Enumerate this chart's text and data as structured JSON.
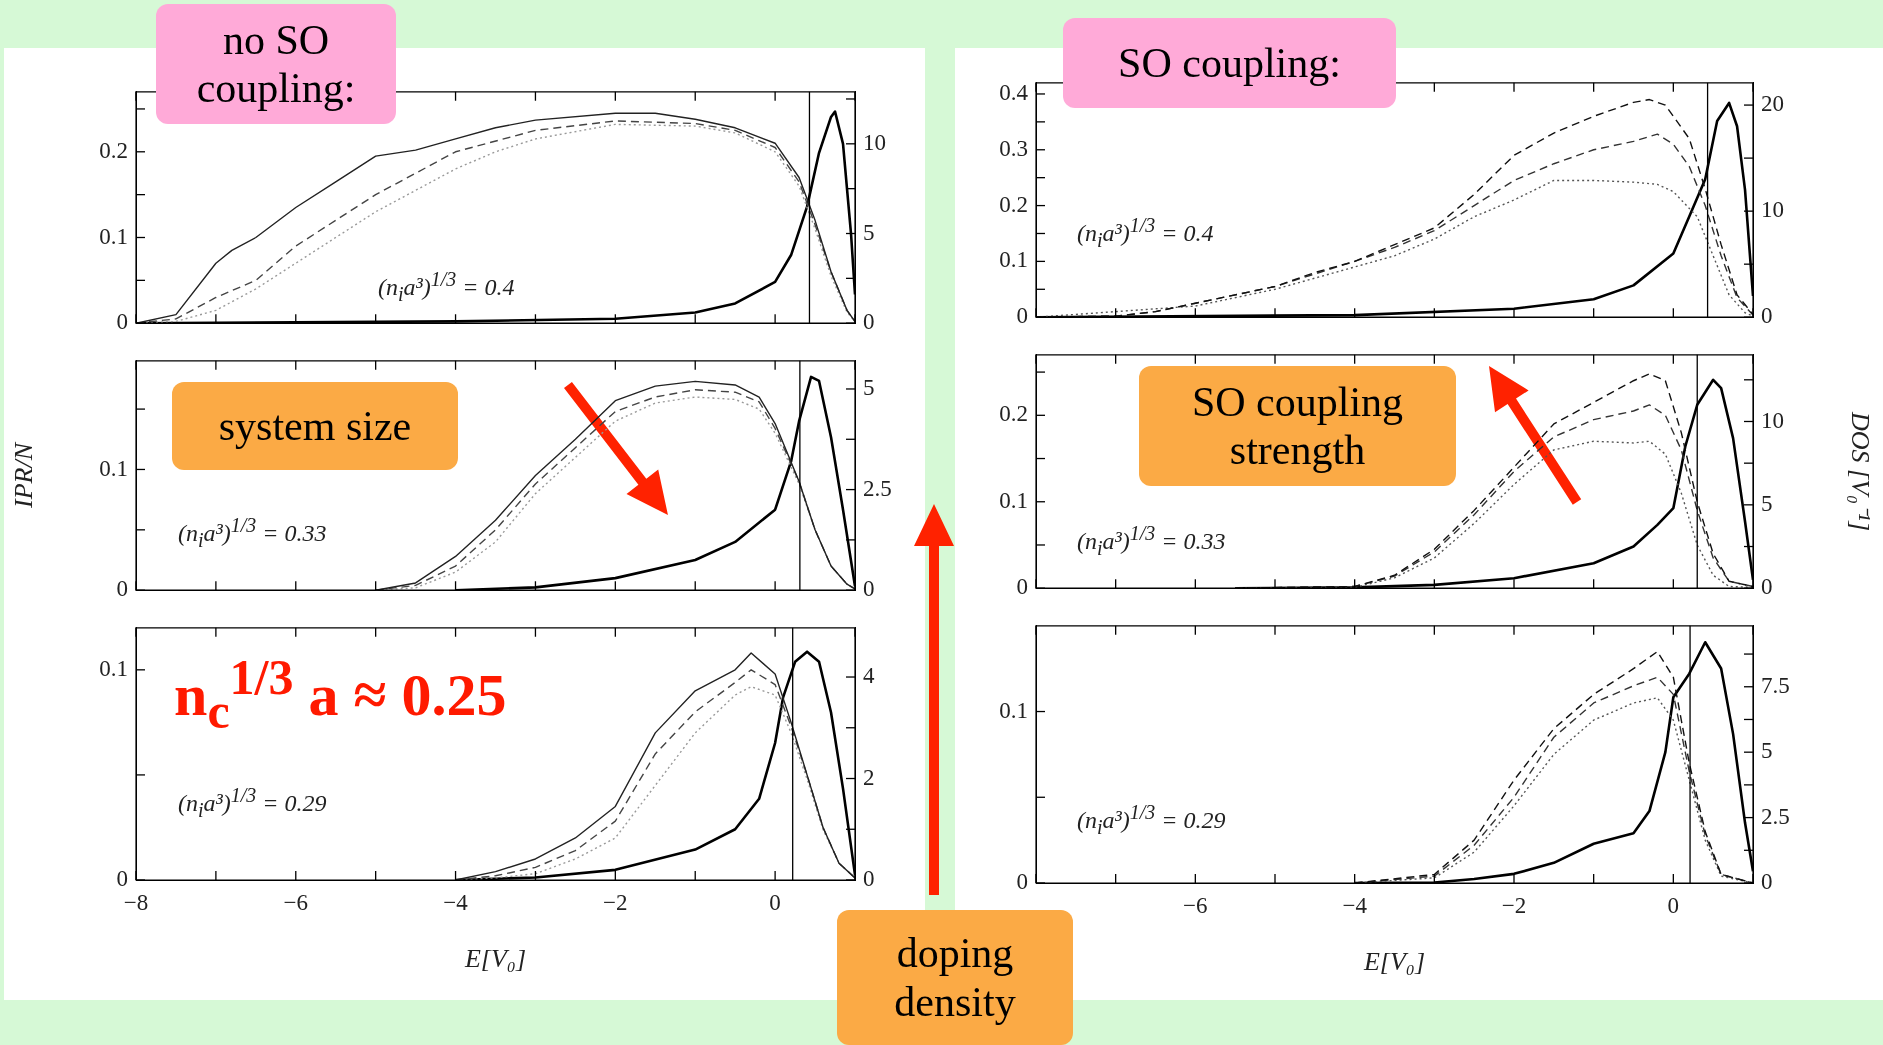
{
  "chart_data": [
    {
      "type": "line",
      "marker": "none",
      "tick_labels": "y",
      "xlim": [
        -8,
        1
      ],
      "xticks": [
        {
          "value": -8,
          "label": null
        },
        {
          "value": -7,
          "label": null
        },
        {
          "value": -6,
          "label": null
        },
        {
          "value": -5,
          "label": null
        },
        {
          "value": -4,
          "label": null
        },
        {
          "value": -3,
          "label": null
        },
        {
          "value": -2,
          "label": null
        },
        {
          "value": -1,
          "label": null
        },
        {
          "value": 0,
          "label": null
        },
        {
          "value": 1,
          "label": null
        }
      ],
      "ylim": [
        0,
        0.27
      ],
      "yticks": [
        0,
        {
          "value": 0.05,
          "label": null
        },
        0.1,
        {
          "value": 0.15,
          "label": null
        },
        0.2,
        {
          "value": 0.25,
          "label": null
        }
      ],
      "y2lim": [
        0,
        12.9
      ],
      "y2ticks": [
        0,
        {
          "value": 2.5,
          "label": null
        },
        5,
        {
          "value": 7.5,
          "label": null
        },
        10,
        {
          "value": 12.5,
          "label": null
        }
      ],
      "series": [
        {
          "color": "#222222",
          "line_style": "solid",
          "x": [
            -8,
            -7.5,
            -7,
            -6.8,
            -6.5,
            -6,
            -5.5,
            -5,
            -4.5,
            -4,
            -3.5,
            -3,
            -2,
            -1.5,
            -1,
            -0.5,
            0,
            0.3,
            0.5,
            0.7,
            0.9,
            1
          ],
          "values": [
            0,
            0.01,
            0.07,
            0.085,
            0.1,
            0.135,
            0.165,
            0.195,
            0.202,
            0.215,
            0.228,
            0.237,
            0.245,
            0.245,
            0.238,
            0.228,
            0.21,
            0.17,
            0.12,
            0.06,
            0.015,
            0.002
          ]
        },
        {
          "color": "#444444",
          "line_style": "dashed",
          "x": [
            -8,
            -7.5,
            -7,
            -6.5,
            -6,
            -5.5,
            -5,
            -4.5,
            -4,
            -3,
            -2,
            -1,
            -0.5,
            0,
            0.3,
            0.5,
            0.7,
            0.9,
            1
          ],
          "values": [
            0,
            0.005,
            0.03,
            0.05,
            0.09,
            0.12,
            0.15,
            0.175,
            0.2,
            0.225,
            0.236,
            0.233,
            0.225,
            0.205,
            0.165,
            0.115,
            0.06,
            0.015,
            0.002
          ]
        },
        {
          "color": "#999999",
          "line_style": "dotted",
          "x": [
            -8,
            -7.5,
            -7,
            -6.5,
            -6,
            -5.5,
            -5,
            -4.5,
            -4,
            -3.5,
            -3,
            -2,
            -1,
            -0.5,
            0,
            0.3,
            0.5,
            0.7,
            0.9,
            1
          ],
          "values": [
            0,
            0.002,
            0.015,
            0.04,
            0.07,
            0.1,
            0.13,
            0.155,
            0.18,
            0.2,
            0.215,
            0.232,
            0.23,
            0.222,
            0.2,
            0.16,
            0.11,
            0.055,
            0.013,
            0.002
          ]
        },
        {
          "color": "#000000",
          "line_style": "solid",
          "axis": "y2",
          "x": [
            -8,
            -4,
            -2,
            -1,
            -0.5,
            0,
            0.2,
            0.4,
            0.55,
            0.7,
            0.75,
            0.85,
            0.95,
            1
          ],
          "values": [
            0,
            0.1,
            0.25,
            0.6,
            1.1,
            2.3,
            3.8,
            6.5,
            9.5,
            11.5,
            11.8,
            10,
            5,
            1.6
          ]
        }
      ],
      "ref_lines": [
        {
          "axis": "x",
          "value": 0.43
        }
      ],
      "annotations": [
        "(n$_{i}$a³)$^{1/3}$ = 0.4",
        "no SO coupling:"
      ]
    },
    {
      "type": "line",
      "marker": "none",
      "tick_labels": "y",
      "xlim": [
        -8,
        1
      ],
      "xticks": [
        {
          "value": -8,
          "label": null
        },
        {
          "value": -7,
          "label": null
        },
        {
          "value": -6,
          "label": null
        },
        {
          "value": -5,
          "label": null
        },
        {
          "value": -4,
          "label": null
        },
        {
          "value": -3,
          "label": null
        },
        {
          "value": -2,
          "label": null
        },
        {
          "value": -1,
          "label": null
        },
        {
          "value": 0,
          "label": null
        },
        {
          "value": 1,
          "label": null
        }
      ],
      "ylim": [
        0,
        0.42
      ],
      "yticks": [
        0,
        {
          "value": 0.05,
          "label": null
        },
        0.1,
        {
          "value": 0.15,
          "label": null
        },
        0.2,
        {
          "value": 0.25,
          "label": null
        },
        0.3,
        {
          "value": 0.35,
          "label": null
        },
        0.4
      ],
      "y2lim": [
        0,
        22.1
      ],
      "y2ticks": [
        0,
        {
          "value": 5,
          "label": null
        },
        10,
        {
          "value": 15,
          "label": null
        },
        20
      ],
      "series": [
        {
          "color": "#111111",
          "line_style": "dashed",
          "x": [
            -8,
            -7,
            -6.5,
            -6,
            -5.5,
            -5,
            -4.5,
            -4,
            -3.5,
            -3,
            -2.5,
            -2,
            -1.5,
            -1,
            -0.5,
            -0.3,
            -0.1,
            0.2,
            0.4,
            0.6,
            0.8,
            1
          ],
          "values": [
            0,
            0.002,
            0.01,
            0.025,
            0.04,
            0.055,
            0.08,
            0.1,
            0.13,
            0.16,
            0.22,
            0.29,
            0.33,
            0.36,
            0.385,
            0.39,
            0.38,
            0.32,
            0.23,
            0.13,
            0.04,
            0.005
          ]
        },
        {
          "color": "#333333",
          "line_style": "dashed",
          "x": [
            -8,
            -7,
            -6.5,
            -6,
            -5,
            -4,
            -3.5,
            -3,
            -2.5,
            -2,
            -1.5,
            -1,
            -0.5,
            -0.2,
            0,
            0.2,
            0.4,
            0.6,
            0.8,
            1
          ],
          "values": [
            0,
            0.002,
            0.01,
            0.025,
            0.055,
            0.1,
            0.125,
            0.155,
            0.2,
            0.245,
            0.275,
            0.3,
            0.315,
            0.328,
            0.31,
            0.27,
            0.2,
            0.11,
            0.035,
            0.004
          ]
        },
        {
          "color": "#555555",
          "line_style": "dotted",
          "x": [
            -8,
            -6,
            -5,
            -4,
            -3.5,
            -3,
            -2.5,
            -2,
            -1.5,
            -1,
            -0.5,
            -0.2,
            0,
            0.3,
            0.5,
            0.7,
            0.9,
            1
          ],
          "values": [
            0,
            0.02,
            0.05,
            0.09,
            0.11,
            0.14,
            0.18,
            0.21,
            0.245,
            0.245,
            0.242,
            0.238,
            0.225,
            0.18,
            0.11,
            0.04,
            0.008,
            0.002
          ]
        },
        {
          "color": "#000000",
          "line_style": "solid",
          "axis": "y2",
          "x": [
            -8,
            -4,
            -2,
            -1,
            -0.5,
            0,
            0.2,
            0.4,
            0.55,
            0.7,
            0.8,
            0.9,
            1
          ],
          "values": [
            0,
            0.2,
            0.8,
            1.7,
            3,
            6,
            9.5,
            13,
            18.5,
            20.2,
            18,
            12,
            2
          ]
        }
      ],
      "ref_lines": [
        {
          "axis": "x",
          "value": 0.43
        }
      ],
      "annotations": [
        "(n$_{i}$a³)$^{1/3}$ = 0.4",
        "SO coupling:"
      ]
    },
    {
      "type": "line",
      "marker": "none",
      "tick_labels": "y",
      "ylabel": "IPR/N",
      "xlim": [
        -8,
        1
      ],
      "xticks": [
        {
          "value": -8,
          "label": null
        },
        {
          "value": -7,
          "label": null
        },
        {
          "value": -6,
          "label": null
        },
        {
          "value": -5,
          "label": null
        },
        {
          "value": -4,
          "label": null
        },
        {
          "value": -3,
          "label": null
        },
        {
          "value": -2,
          "label": null
        },
        {
          "value": -1,
          "label": null
        },
        {
          "value": 0,
          "label": null
        },
        {
          "value": 1,
          "label": null
        }
      ],
      "ylim": [
        0,
        0.19
      ],
      "yticks": [
        0,
        {
          "value": 0.05,
          "label": null
        },
        0.1,
        {
          "value": 0.15,
          "label": null
        }
      ],
      "y2lim": [
        0,
        5.7
      ],
      "y2ticks": [
        0,
        {
          "value": 1.25,
          "label": null
        },
        2.5,
        {
          "value": 3.75,
          "label": null
        },
        5
      ],
      "series": [
        {
          "color": "#222222",
          "line_style": "solid",
          "x": [
            -5,
            -4.5,
            -4,
            -3.5,
            -3,
            -2.5,
            -2,
            -1.5,
            -1,
            -0.5,
            -0.2,
            0,
            0.3,
            0.5,
            0.7,
            0.9,
            1
          ],
          "values": [
            0,
            0.006,
            0.028,
            0.058,
            0.095,
            0.125,
            0.157,
            0.169,
            0.173,
            0.17,
            0.16,
            0.138,
            0.09,
            0.05,
            0.02,
            0.005,
            0.001
          ]
        },
        {
          "color": "#444444",
          "line_style": "dashed",
          "x": [
            -5,
            -4.5,
            -4,
            -3.5,
            -3,
            -2.5,
            -2,
            -1.5,
            -1,
            -0.5,
            -0.2,
            0,
            0.3,
            0.5,
            0.7,
            0.9,
            1
          ],
          "values": [
            0,
            0.004,
            0.02,
            0.05,
            0.088,
            0.118,
            0.148,
            0.16,
            0.166,
            0.164,
            0.156,
            0.134,
            0.09,
            0.05,
            0.02,
            0.005,
            0.001
          ]
        },
        {
          "color": "#999999",
          "line_style": "dotted",
          "x": [
            -5,
            -4.5,
            -4,
            -3.5,
            -3,
            -2.5,
            -2,
            -1.5,
            -1,
            -0.5,
            -0.2,
            0,
            0.3,
            0.5,
            0.7,
            0.9,
            1
          ],
          "values": [
            0,
            0.002,
            0.015,
            0.04,
            0.08,
            0.11,
            0.14,
            0.155,
            0.16,
            0.158,
            0.15,
            0.13,
            0.088,
            0.05,
            0.02,
            0.005,
            0.001
          ]
        },
        {
          "color": "#000000",
          "line_style": "solid",
          "axis": "y2",
          "x": [
            -4,
            -3,
            -2,
            -1,
            -0.5,
            0,
            0.2,
            0.3,
            0.45,
            0.55,
            0.7,
            0.85,
            1
          ],
          "values": [
            0,
            0.07,
            0.3,
            0.75,
            1.2,
            2,
            3.2,
            4.2,
            5.3,
            5.2,
            3.8,
            2,
            0.1
          ]
        }
      ],
      "ref_lines": [
        {
          "axis": "x",
          "value": 0.31
        }
      ],
      "annotations": [
        "(n$_{i}$a³)$^{1/3}$ = 0.33",
        "system size"
      ]
    },
    {
      "type": "line",
      "marker": "none",
      "tick_labels": "y",
      "y2label": "DOS [V₀⁻¹]",
      "xlim": [
        -8,
        1
      ],
      "xticks": [
        {
          "value": -8,
          "label": null
        },
        {
          "value": -7,
          "label": null
        },
        {
          "value": -6,
          "label": null
        },
        {
          "value": -5,
          "label": null
        },
        {
          "value": -4,
          "label": null
        },
        {
          "value": -3,
          "label": null
        },
        {
          "value": -2,
          "label": null
        },
        {
          "value": -1,
          "label": null
        },
        {
          "value": 0,
          "label": null
        },
        {
          "value": 1,
          "label": null
        }
      ],
      "ylim": [
        0,
        0.27
      ],
      "yticks": [
        0,
        {
          "value": 0.05,
          "label": null
        },
        0.1,
        {
          "value": 0.15,
          "label": null
        },
        0.2,
        {
          "value": 0.25,
          "label": null
        }
      ],
      "y2lim": [
        0,
        14
      ],
      "y2ticks": [
        0,
        {
          "value": 2.5,
          "label": null
        },
        5,
        {
          "value": 7.5,
          "label": null
        },
        10,
        {
          "value": 12.5,
          "label": null
        }
      ],
      "series": [
        {
          "color": "#111111",
          "line_style": "dashed",
          "x": [
            -5.5,
            -4,
            -3.5,
            -3,
            -2.5,
            -2,
            -1.5,
            -1,
            -0.5,
            -0.3,
            -0.1,
            0.1,
            0.3,
            0.5,
            0.7,
            1
          ],
          "values": [
            0,
            0.002,
            0.015,
            0.045,
            0.09,
            0.14,
            0.19,
            0.215,
            0.24,
            0.248,
            0.24,
            0.18,
            0.1,
            0.04,
            0.008,
            0.002
          ]
        },
        {
          "color": "#333333",
          "line_style": "dashed",
          "x": [
            -5.5,
            -4,
            -3.5,
            -3,
            -2.5,
            -2,
            -1.5,
            -1,
            -0.5,
            -0.3,
            -0.1,
            0.1,
            0.3,
            0.5,
            0.7,
            1
          ],
          "values": [
            0,
            0.002,
            0.014,
            0.042,
            0.085,
            0.135,
            0.175,
            0.195,
            0.205,
            0.212,
            0.2,
            0.16,
            0.09,
            0.035,
            0.008,
            0.002
          ]
        },
        {
          "color": "#555555",
          "line_style": "dotted",
          "x": [
            -5.5,
            -4,
            -3.5,
            -3,
            -2.5,
            -2,
            -1.5,
            -1,
            -0.5,
            -0.3,
            -0.1,
            0.1,
            0.3,
            0.5,
            0.7,
            1
          ],
          "values": [
            0,
            0.001,
            0.012,
            0.035,
            0.075,
            0.12,
            0.16,
            0.17,
            0.168,
            0.17,
            0.155,
            0.11,
            0.05,
            0.015,
            0.002,
            0.001
          ]
        },
        {
          "color": "#000000",
          "line_style": "solid",
          "axis": "y2",
          "x": [
            -5.5,
            -4,
            -3,
            -2,
            -1,
            -0.5,
            -0.2,
            0,
            0.15,
            0.3,
            0.5,
            0.6,
            0.75,
            0.9,
            1
          ],
          "values": [
            0,
            0.05,
            0.2,
            0.6,
            1.5,
            2.5,
            3.8,
            4.8,
            8.5,
            11,
            12.5,
            12,
            9,
            4,
            0.5
          ]
        }
      ],
      "ref_lines": [
        {
          "axis": "x",
          "value": 0.3
        }
      ],
      "annotations": [
        "(n$_{i}$a³)$^{1/3}$ = 0.33",
        "SO coupling strength"
      ]
    },
    {
      "type": "line",
      "marker": "none",
      "xlabel": "E[V₀]",
      "xlim": [
        -8,
        1
      ],
      "xticks": [
        {
          "value": -8,
          "label": "−8"
        },
        {
          "value": -7,
          "label": null
        },
        {
          "value": -6,
          "label": "−6"
        },
        {
          "value": -5,
          "label": null
        },
        {
          "value": -4,
          "label": "−4"
        },
        {
          "value": -3,
          "label": null
        },
        {
          "value": -2,
          "label": "−2"
        },
        {
          "value": -1,
          "label": null
        },
        0,
        {
          "value": 1,
          "label": null
        }
      ],
      "ylim": [
        0,
        0.12
      ],
      "yticks": [
        0,
        {
          "value": 0.05,
          "label": null
        },
        0.1
      ],
      "y2lim": [
        0,
        4.97
      ],
      "y2ticks": [
        0,
        {
          "value": 1,
          "label": null
        },
        2,
        {
          "value": 3,
          "label": null
        },
        4
      ],
      "series": [
        {
          "color": "#222222",
          "line_style": "solid",
          "x": [
            -4,
            -3.5,
            -3,
            -2.5,
            -2,
            -1.5,
            -1,
            -0.5,
            -0.3,
            0,
            0.2,
            0.4,
            0.6,
            0.8,
            1
          ],
          "values": [
            0,
            0.004,
            0.01,
            0.02,
            0.035,
            0.07,
            0.09,
            0.1,
            0.108,
            0.098,
            0.075,
            0.05,
            0.025,
            0.008,
            0.001
          ]
        },
        {
          "color": "#444444",
          "line_style": "dashed",
          "x": [
            -4,
            -3.5,
            -3,
            -2.5,
            -2,
            -1.5,
            -1,
            -0.5,
            -0.3,
            0,
            0.2,
            0.4,
            0.6,
            0.8,
            1
          ],
          "values": [
            0,
            0.002,
            0.006,
            0.014,
            0.028,
            0.06,
            0.08,
            0.094,
            0.1,
            0.093,
            0.073,
            0.05,
            0.025,
            0.008,
            0.001
          ]
        },
        {
          "color": "#999999",
          "line_style": "dotted",
          "x": [
            -4,
            -3.5,
            -3,
            -2.5,
            -2,
            -1.5,
            -1,
            -0.5,
            -0.3,
            0,
            0.2,
            0.4,
            0.6,
            0.8,
            1
          ],
          "values": [
            0,
            0.001,
            0.003,
            0.01,
            0.02,
            0.045,
            0.07,
            0.088,
            0.092,
            0.088,
            0.07,
            0.048,
            0.024,
            0.008,
            0.001
          ]
        },
        {
          "color": "#000000",
          "line_style": "solid",
          "axis": "y2",
          "x": [
            -4,
            -3,
            -2,
            -1,
            -0.5,
            -0.2,
            0,
            0.1,
            0.25,
            0.4,
            0.55,
            0.7,
            0.85,
            1
          ],
          "values": [
            0,
            0.05,
            0.2,
            0.6,
            1,
            1.6,
            2.7,
            3.6,
            4.3,
            4.5,
            4.3,
            3.3,
            1.8,
            0.1
          ]
        }
      ],
      "ref_lines": [
        {
          "axis": "x",
          "value": 0.22
        }
      ],
      "annotations": [
        "(n$_{i}$a³)$^{1/3}$ = 0.29",
        "n$_{c}$$^{1/3}$ a ≈ 0.25",
        "doping density"
      ]
    },
    {
      "type": "line",
      "marker": "none",
      "xlabel": "E[V₀]",
      "xlim": [
        -8,
        1
      ],
      "xticks": [
        {
          "value": -8,
          "label": null
        },
        {
          "value": -7,
          "label": null
        },
        {
          "value": -6,
          "label": "−6"
        },
        {
          "value": -5,
          "label": null
        },
        {
          "value": -4,
          "label": "−4"
        },
        {
          "value": -3,
          "label": null
        },
        {
          "value": -2,
          "label": "−2"
        },
        {
          "value": -1,
          "label": null
        },
        0,
        {
          "value": 1,
          "label": null
        }
      ],
      "ylim": [
        0,
        0.15
      ],
      "yticks": [
        0,
        {
          "value": 0.05,
          "label": null
        },
        0.1
      ],
      "y2lim": [
        0,
        9.83
      ],
      "y2ticks": [
        0,
        {
          "value": 1.25,
          "label": null
        },
        2.5,
        {
          "value": 3.75,
          "label": null
        },
        5,
        {
          "value": 6.25,
          "label": null
        },
        7.5,
        {
          "value": 8.75,
          "label": null
        }
      ],
      "series": [
        {
          "color": "#111111",
          "line_style": "dashed",
          "x": [
            -4,
            -3,
            -2.5,
            -2,
            -1.5,
            -1,
            -0.5,
            -0.2,
            0,
            0.2,
            0.4,
            0.6,
            1
          ],
          "values": [
            0,
            0.005,
            0.025,
            0.06,
            0.09,
            0.11,
            0.125,
            0.135,
            0.12,
            0.07,
            0.03,
            0.005,
            0
          ]
        },
        {
          "color": "#333333",
          "line_style": "dashed",
          "x": [
            -4,
            -3,
            -2.5,
            -2,
            -1.5,
            -1,
            -0.5,
            -0.2,
            0,
            0.2,
            0.4,
            0.6,
            1
          ],
          "values": [
            0,
            0.004,
            0.022,
            0.05,
            0.085,
            0.105,
            0.115,
            0.12,
            0.11,
            0.065,
            0.028,
            0.005,
            0
          ]
        },
        {
          "color": "#555555",
          "line_style": "dotted",
          "x": [
            -4,
            -3,
            -2.5,
            -2,
            -1.5,
            -1,
            -0.5,
            -0.2,
            0,
            0.2,
            0.4,
            0.6,
            1
          ],
          "values": [
            0,
            0.003,
            0.018,
            0.045,
            0.075,
            0.095,
            0.105,
            0.108,
            0.095,
            0.06,
            0.025,
            0.004,
            0
          ]
        },
        {
          "color": "#000000",
          "line_style": "solid",
          "axis": "y2",
          "x": [
            -4,
            -3,
            -2.5,
            -2,
            -1.5,
            -1,
            -0.5,
            -0.3,
            -0.1,
            0,
            0.2,
            0.4,
            0.6,
            0.75,
            0.9,
            1
          ],
          "values": [
            0,
            0.02,
            0.15,
            0.35,
            0.77,
            1.5,
            1.9,
            2.75,
            5,
            7.1,
            8,
            9.2,
            8.2,
            5.7,
            2.3,
            0.45
          ]
        }
      ],
      "ref_lines": [
        {
          "axis": "x",
          "value": 0.21
        }
      ],
      "annotations": [
        "(n$_{i}$a³)$^{1/3}$ = 0.29"
      ]
    }
  ]
}
